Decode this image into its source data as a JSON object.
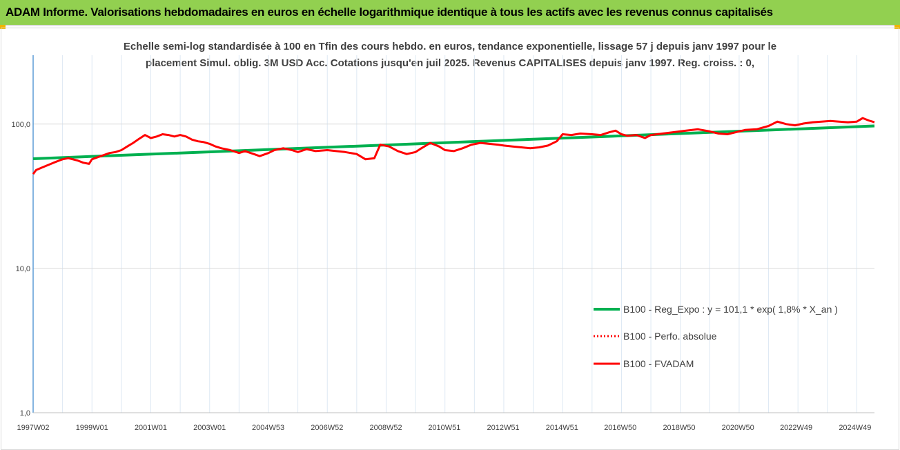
{
  "banner": {
    "title": "ADAM Informe. Valorisations hebdomadaires en euros en échelle logarithmique identique à tous les actifs avec les revenus connus capitalisés"
  },
  "colors": {
    "banner_bg": "#92d050",
    "corner_accent": "#f0b400",
    "trend": "#00b050",
    "series": "#ff0000",
    "axis": "#5b9bd5"
  },
  "chart_data": {
    "type": "line",
    "title_lines": [
      "Echelle semi-log standardisée à 100 en Tfin des cours hebdo. en euros, tendance exponentielle, lissage 57 j depuis janv 1997 pour le",
      "placement Simul. oblig. 3M USD Acc. Cotations jusqu'en juil 2025. Revenus CAPITALISES depuis janv 1997. Reg. croiss. : 0,"
    ],
    "y_scale": "log",
    "ylim": [
      1,
      300
    ],
    "y_ticks": [
      {
        "value": 1,
        "label": "1,0"
      },
      {
        "value": 10,
        "label": "10,0"
      },
      {
        "value": 100,
        "label": "100,0"
      }
    ],
    "x_range": [
      1997.0,
      2025.6
    ],
    "x_ticks": [
      {
        "value": 1997.0,
        "label": "1997W02"
      },
      {
        "value": 1999.0,
        "label": "1999W01"
      },
      {
        "value": 2001.0,
        "label": "2001W01"
      },
      {
        "value": 2003.0,
        "label": "2003W01"
      },
      {
        "value": 2004.99,
        "label": "2004W53"
      },
      {
        "value": 2006.99,
        "label": "2006W52"
      },
      {
        "value": 2008.99,
        "label": "2008W52"
      },
      {
        "value": 2010.98,
        "label": "2010W51"
      },
      {
        "value": 2012.98,
        "label": "2012W51"
      },
      {
        "value": 2014.98,
        "label": "2014W51"
      },
      {
        "value": 2016.96,
        "label": "2016W50"
      },
      {
        "value": 2018.96,
        "label": "2018W50"
      },
      {
        "value": 2020.96,
        "label": "2020W50"
      },
      {
        "value": 2022.94,
        "label": "2022W49"
      },
      {
        "value": 2024.94,
        "label": "2024W49"
      }
    ],
    "grid": "vertical",
    "legend_position": "right",
    "series": [
      {
        "name": "B100 - Reg_Expo : y = 101,1 * exp( 1,8% *  X_an )",
        "style": "solid",
        "color": "#00b050",
        "x": [
          1997.0,
          2025.6
        ],
        "y": [
          57.5,
          97.0
        ]
      },
      {
        "name": "B100 - Perfo. absolue",
        "style": "dotted",
        "color": "#ff0000",
        "x": [],
        "y": []
      },
      {
        "name": "B100 - FVADAM",
        "style": "solid",
        "color": "#ff0000",
        "x": [
          1997.0,
          1997.1,
          1997.3,
          1997.5,
          1997.7,
          1997.9,
          1998.0,
          1998.2,
          1998.5,
          1998.7,
          1998.9,
          1999.0,
          1999.2,
          1999.4,
          1999.6,
          1999.8,
          2000.0,
          2000.2,
          2000.4,
          2000.6,
          2000.8,
          2001.0,
          2001.2,
          2001.4,
          2001.6,
          2001.8,
          2002.0,
          2002.2,
          2002.4,
          2002.6,
          2002.8,
          2003.0,
          2003.2,
          2003.4,
          2003.7,
          2004.0,
          2004.2,
          2004.5,
          2004.7,
          2005.0,
          2005.2,
          2005.5,
          2005.8,
          2006.0,
          2006.3,
          2006.6,
          2007.0,
          2007.3,
          2007.6,
          2008.0,
          2008.3,
          2008.6,
          2008.8,
          2009.1,
          2009.4,
          2009.7,
          2010.0,
          2010.2,
          2010.5,
          2010.8,
          2011.0,
          2011.3,
          2011.6,
          2011.9,
          2012.2,
          2012.5,
          2012.8,
          2013.0,
          2013.3,
          2013.6,
          2013.9,
          2014.2,
          2014.5,
          2014.8,
          2015.0,
          2015.3,
          2015.6,
          2016.0,
          2016.3,
          2016.6,
          2016.8,
          2017.0,
          2017.2,
          2017.5,
          2017.8,
          2018.0,
          2018.4,
          2018.8,
          2019.2,
          2019.6,
          2020.0,
          2020.3,
          2020.6,
          2020.9,
          2021.2,
          2021.6,
          2022.0,
          2022.3,
          2022.6,
          2022.9,
          2023.2,
          2023.5,
          2023.8,
          2024.1,
          2024.4,
          2024.7,
          2025.0,
          2025.2,
          2025.4,
          2025.6
        ],
        "y": [
          45,
          48,
          50,
          52,
          54,
          56,
          57,
          58,
          56,
          54,
          53,
          57,
          59,
          61,
          63,
          64,
          66,
          70,
          74,
          79,
          84,
          80,
          82,
          85,
          84,
          82,
          84,
          82,
          78,
          76,
          75,
          73,
          70,
          68,
          66,
          63,
          65,
          62,
          60,
          63,
          66,
          68,
          66,
          64,
          67,
          65,
          66,
          65,
          64,
          62,
          57,
          58,
          72,
          70,
          65,
          62,
          64,
          68,
          74,
          70,
          66,
          65,
          68,
          72,
          74,
          73,
          72,
          71,
          70,
          69,
          68,
          69,
          71,
          76,
          85,
          84,
          86,
          85,
          84,
          88,
          90,
          85,
          83,
          84,
          80,
          84,
          86,
          88,
          90,
          92,
          89,
          86,
          85,
          88,
          91,
          92,
          97,
          104,
          100,
          98,
          101,
          103,
          104,
          105,
          104,
          103,
          104,
          110,
          106,
          103
        ]
      }
    ]
  }
}
